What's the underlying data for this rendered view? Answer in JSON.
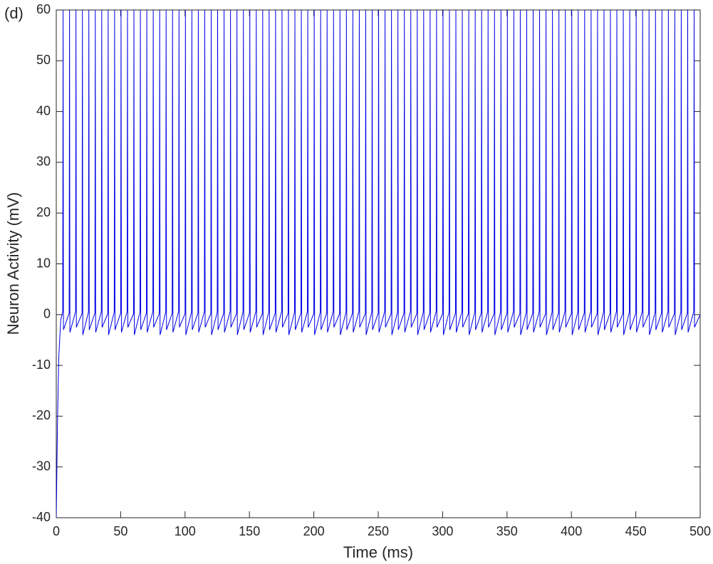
{
  "chart_data": {
    "type": "line",
    "annotation": "(d)",
    "xlabel": "Time (ms)",
    "ylabel": "Neuron Activity (mV)",
    "color": "#0000e6",
    "xlim": [
      0,
      500
    ],
    "xticks": [
      0,
      50,
      100,
      150,
      200,
      250,
      300,
      350,
      400,
      450,
      500
    ],
    "ylim": [
      -40,
      60
    ],
    "yticks": [
      -40,
      -30,
      -20,
      -10,
      0,
      10,
      20,
      30,
      40,
      50,
      60
    ],
    "x": [
      0,
      1,
      2,
      3.5,
      5,
      5.3,
      5.6,
      10,
      10.3,
      10.6,
      15,
      15.3,
      15.6,
      20,
      20.3,
      20.6,
      25,
      25.3,
      25.6,
      30,
      30.3,
      30.6,
      35,
      35.3,
      35.6,
      40,
      40.3,
      40.6,
      45,
      45.3,
      45.6,
      50,
      50.3,
      50.6,
      55,
      55.3,
      55.6,
      60,
      60.3,
      60.6,
      65,
      65.3,
      65.6,
      70,
      70.3,
      70.6,
      75,
      75.3,
      75.6,
      80,
      80.3,
      80.6,
      85,
      85.3,
      85.6,
      90,
      90.3,
      90.6,
      95,
      95.3,
      95.6,
      100,
      100.3,
      100.6,
      105,
      105.3,
      105.6,
      110,
      110.3,
      110.6,
      115,
      115.3,
      115.6,
      120,
      120.3,
      120.6,
      125,
      125.3,
      125.6,
      130,
      130.3,
      130.6,
      135,
      135.3,
      135.6,
      140,
      140.3,
      140.6,
      145,
      145.3,
      145.6,
      150,
      150.3,
      150.6,
      155,
      155.3,
      155.6,
      160,
      160.3,
      160.6,
      165,
      165.3,
      165.6,
      170,
      170.3,
      170.6,
      175,
      175.3,
      175.6,
      180,
      180.3,
      180.6,
      185,
      185.3,
      185.6,
      190,
      190.3,
      190.6,
      195,
      195.3,
      195.6,
      200,
      200.3,
      200.6,
      205,
      205.3,
      205.6,
      210,
      210.3,
      210.6,
      215,
      215.3,
      215.6,
      220,
      220.3,
      220.6,
      225,
      225.3,
      225.6,
      230,
      230.3,
      230.6,
      235,
      235.3,
      235.6,
      240,
      240.3,
      240.6,
      245,
      245.3,
      245.6,
      250,
      250.3,
      250.6,
      255,
      255.3,
      255.6,
      260,
      260.3,
      260.6,
      265,
      265.3,
      265.6,
      270,
      270.3,
      270.6,
      275,
      275.3,
      275.6,
      280,
      280.3,
      280.6,
      285,
      285.3,
      285.6,
      290,
      290.3,
      290.6,
      295,
      295.3,
      295.6,
      300,
      300.3,
      300.6,
      305,
      305.3,
      305.6,
      310,
      310.3,
      310.6,
      315,
      315.3,
      315.6,
      320,
      320.3,
      320.6,
      325,
      325.3,
      325.6,
      330,
      330.3,
      330.6,
      335,
      335.3,
      335.6,
      340,
      340.3,
      340.6,
      345,
      345.3,
      345.6,
      350,
      350.3,
      350.6,
      355,
      355.3,
      355.6,
      360,
      360.3,
      360.6,
      365,
      365.3,
      365.6,
      370,
      370.3,
      370.6,
      375,
      375.3,
      375.6,
      380,
      380.3,
      380.6,
      385,
      385.3,
      385.6,
      390,
      390.3,
      390.6,
      395,
      395.3,
      395.6,
      400,
      400.3,
      400.6,
      405,
      405.3,
      405.6,
      410,
      410.3,
      410.6,
      415,
      415.3,
      415.6,
      420,
      420.3,
      420.6,
      425,
      425.3,
      425.6,
      430,
      430.3,
      430.6,
      435,
      435.3,
      435.6,
      440,
      440.3,
      440.6,
      445,
      445.3,
      445.6,
      450,
      450.3,
      450.6,
      455,
      455.3,
      455.6,
      460,
      460.3,
      460.6,
      465,
      465.3,
      465.6,
      470,
      470.3,
      470.6,
      475,
      475.3,
      475.6,
      480,
      480.3,
      480.6,
      485,
      485.3,
      485.6,
      490,
      490.3,
      490.6,
      495,
      495.3,
      495.6,
      500
    ],
    "values": [
      -40,
      -20,
      -8,
      -1,
      0.5,
      60,
      -3,
      0.3,
      60,
      -3.5,
      0.6,
      60,
      -2.5,
      0.2,
      60,
      -4,
      0.5,
      60,
      -3,
      0.3,
      60,
      -3.5,
      0.6,
      60,
      -2.5,
      0.2,
      60,
      -4,
      0.5,
      60,
      -3,
      0.3,
      60,
      -3.5,
      0.6,
      60,
      -2.5,
      0.2,
      60,
      -4,
      0.5,
      60,
      -3,
      0.3,
      60,
      -3.5,
      0.6,
      60,
      -2.5,
      0.2,
      60,
      -4,
      0.5,
      60,
      -3,
      0.3,
      60,
      -3.5,
      0.6,
      60,
      -2.5,
      0.2,
      60,
      -4,
      0.5,
      60,
      -3,
      0.3,
      60,
      -3.5,
      0.6,
      60,
      -2.5,
      0.2,
      60,
      -4,
      0.5,
      60,
      -3,
      0.3,
      60,
      -3.5,
      0.6,
      60,
      -2.5,
      0.2,
      60,
      -4,
      0.5,
      60,
      -3,
      0.3,
      60,
      -3.5,
      0.6,
      60,
      -2.5,
      0.2,
      60,
      -4,
      0.5,
      60,
      -3,
      0.3,
      60,
      -3.5,
      0.6,
      60,
      -2.5,
      0.2,
      60,
      -4,
      0.5,
      60,
      -3,
      0.3,
      60,
      -3.5,
      0.6,
      60,
      -2.5,
      0.2,
      60,
      -4,
      0.5,
      60,
      -3,
      0.3,
      60,
      -3.5,
      0.6,
      60,
      -2.5,
      0.2,
      60,
      -4,
      0.5,
      60,
      -3,
      0.3,
      60,
      -3.5,
      0.6,
      60,
      -2.5,
      0.2,
      60,
      -4,
      0.5,
      60,
      -3,
      0.3,
      60,
      -3.5,
      0.6,
      60,
      -2.5,
      0.2,
      60,
      -4,
      0.5,
      60,
      -3,
      0.3,
      60,
      -3.5,
      0.6,
      60,
      -2.5,
      0.2,
      60,
      -4,
      0.5,
      60,
      -3,
      0.3,
      60,
      -3.5,
      0.6,
      60,
      -2.5,
      0.2,
      60,
      -4,
      0.5,
      60,
      -3,
      0.3,
      60,
      -3.5,
      0.6,
      60,
      -2.5,
      0.2,
      60,
      -4,
      0.5,
      60,
      -3,
      0.3,
      60,
      -3.5,
      0.6,
      60,
      -2.5,
      0.2,
      60,
      -4,
      0.5,
      60,
      -3,
      0.3,
      60,
      -3.5,
      0.6,
      60,
      -2.5,
      0.2,
      60,
      -4,
      0.5,
      60,
      -3,
      0.3,
      60,
      -3.5,
      0.6,
      60,
      -2.5,
      0.2,
      60,
      -4,
      0.5,
      60,
      -3,
      0.3,
      60,
      -3.5,
      0.6,
      60,
      -2.5,
      0.2,
      60,
      -4,
      0.5,
      60,
      -3,
      0.3,
      60,
      -3.5,
      0.6,
      60,
      -2.5,
      0.2,
      60,
      -4,
      0.5,
      60,
      -3,
      0.3,
      60,
      -3.5,
      0.6,
      60,
      -2.5,
      0.2,
      60,
      -4,
      0.5,
      60,
      -3,
      0.3,
      60,
      -3.5,
      0.6,
      60,
      -2.5,
      0.2,
      60,
      -4,
      0.5,
      60,
      -3,
      0.3,
      60,
      -3.5,
      0.6,
      60,
      -2.5,
      0.2,
      60,
      -4,
      0.5,
      60,
      -3,
      0.3,
      60,
      -3.5,
      0.6,
      60,
      -2.5,
      0
    ]
  }
}
